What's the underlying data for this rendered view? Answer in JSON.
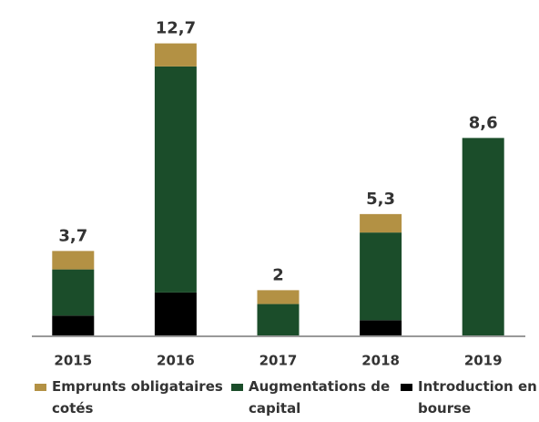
{
  "chart_data": {
    "type": "stacked_bar",
    "categories": [
      "2015",
      "2016",
      "2017",
      "2018",
      "2019"
    ],
    "series": [
      {
        "name": "Emprunts obligataires cotés",
        "color": "#b39144",
        "values": [
          0.8,
          1.0,
          0.6,
          0.8,
          0
        ]
      },
      {
        "name": "Augmentations de capital",
        "color": "#1b4d2a",
        "values": [
          2.0,
          9.8,
          1.4,
          3.8,
          8.6
        ]
      },
      {
        "name": "Introduction en bourse",
        "color": "#000000",
        "values": [
          0.9,
          1.9,
          0,
          0.7,
          0
        ]
      }
    ],
    "totals": [
      3.7,
      12.7,
      2,
      5.3,
      8.6
    ],
    "total_labels": [
      "3,7",
      "12,7",
      "2",
      "5,3",
      "8,6"
    ],
    "ylim": [
      0,
      13
    ]
  }
}
